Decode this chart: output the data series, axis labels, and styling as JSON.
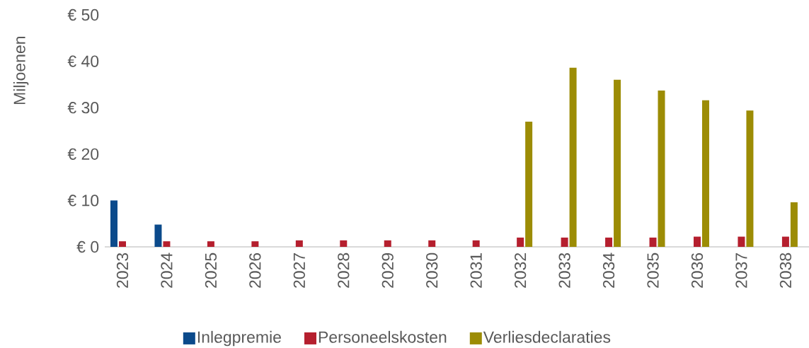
{
  "chart_data": {
    "type": "bar",
    "ylabel": "Miljoenen",
    "categories": [
      "2023",
      "2024",
      "2025",
      "2026",
      "2027",
      "2028",
      "2029",
      "2030",
      "2031",
      "2032",
      "2033",
      "2034",
      "2035",
      "2036",
      "2037",
      "2038"
    ],
    "series": [
      {
        "name": "Inlegpremie",
        "color": "#0b4a8b",
        "values": [
          10,
          4.8,
          null,
          null,
          null,
          null,
          null,
          null,
          null,
          null,
          null,
          null,
          null,
          null,
          null,
          null
        ]
      },
      {
        "name": "Personeelskosten",
        "color": "#b51f2e",
        "values": [
          1.2,
          1.2,
          1.2,
          1.2,
          1.4,
          1.4,
          1.4,
          1.4,
          1.4,
          2.0,
          2.0,
          2.0,
          2.0,
          2.2,
          2.2,
          2.2
        ]
      },
      {
        "name": "Verliesdeclaraties",
        "color": "#9c8c05",
        "values": [
          null,
          null,
          null,
          null,
          null,
          null,
          null,
          null,
          null,
          27,
          38.6,
          36,
          33.7,
          31.6,
          29.4,
          9.6
        ]
      }
    ],
    "ylim": [
      0,
      50
    ],
    "yticks": [
      {
        "value": 0,
        "label": "€ 0"
      },
      {
        "value": 10,
        "label": "€ 10"
      },
      {
        "value": 20,
        "label": "€ 20"
      },
      {
        "value": 30,
        "label": "€ 30"
      },
      {
        "value": 40,
        "label": "€ 40"
      },
      {
        "value": 50,
        "label": "€ 50"
      }
    ],
    "legend": "bottom"
  }
}
